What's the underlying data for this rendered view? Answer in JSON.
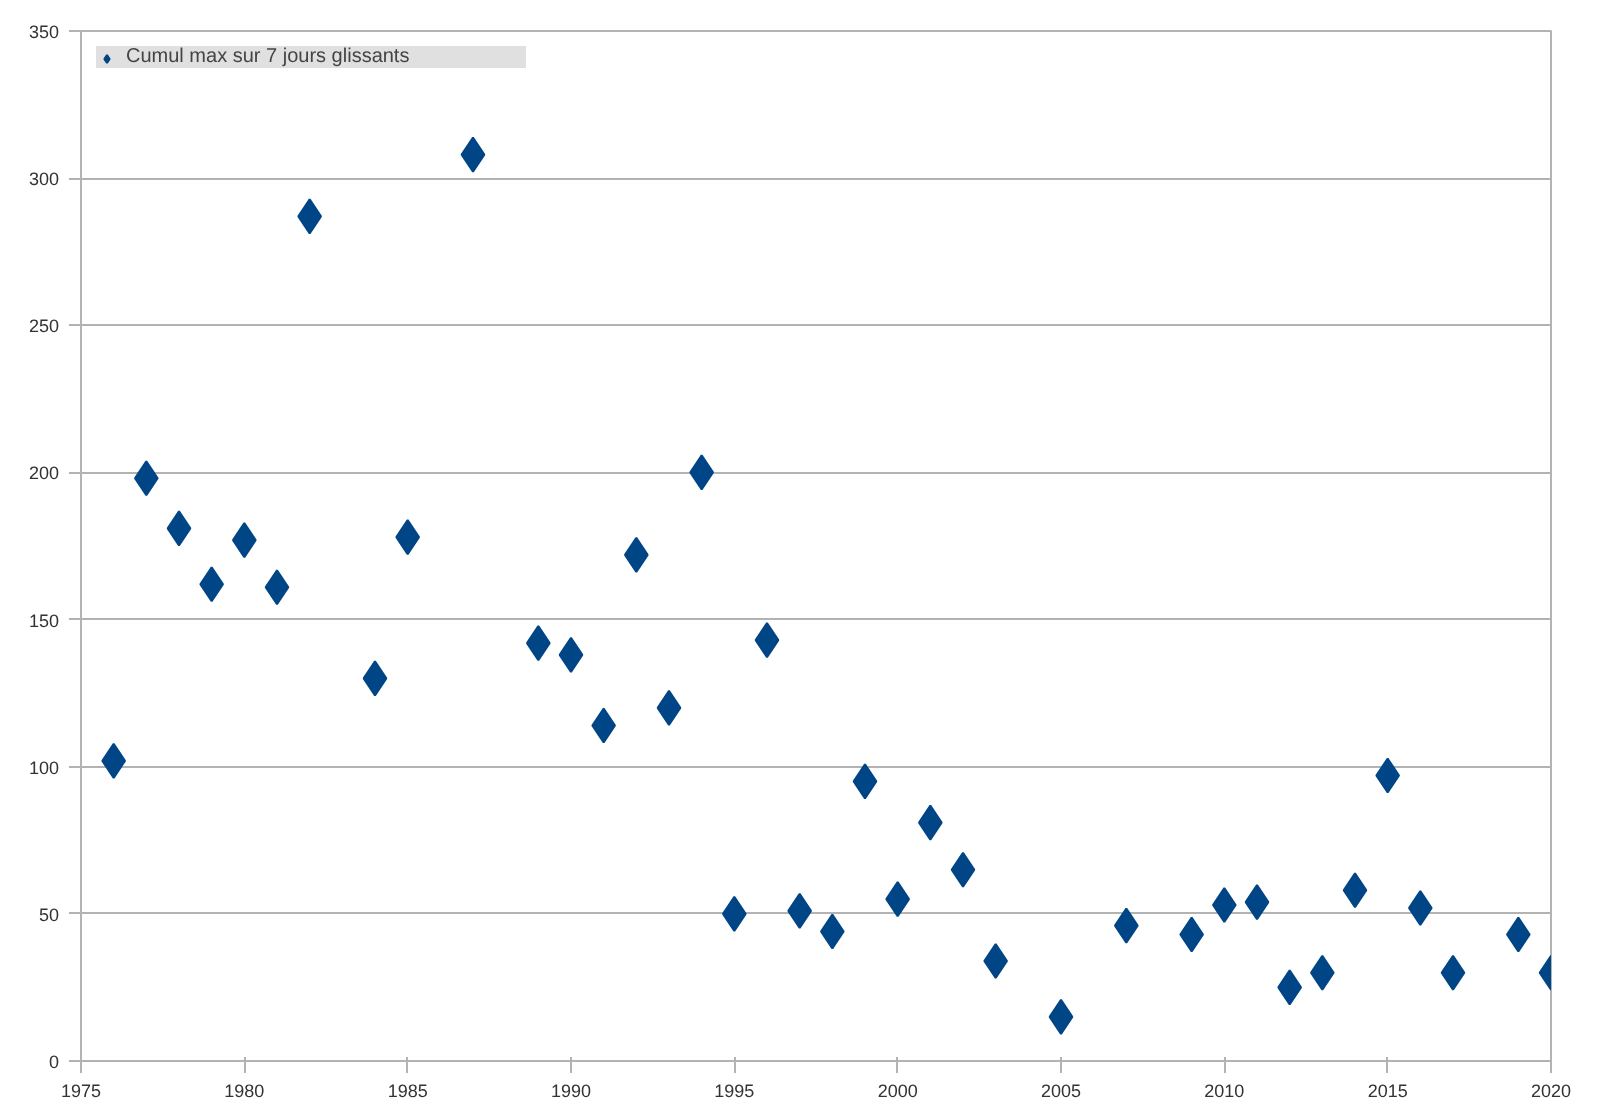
{
  "chart_data": {
    "type": "scatter",
    "marker": "diamond",
    "grid": "y",
    "legend": "top left",
    "x": [
      1976,
      1977,
      1978,
      1979,
      1980,
      1981,
      1982,
      1984,
      1985,
      1987,
      1989,
      1990,
      1991,
      1992,
      1993,
      1994,
      1995,
      1996,
      1997,
      1998,
      1999,
      2000,
      2001,
      2002,
      2003,
      2005,
      2007,
      2009,
      2010,
      2011,
      2012,
      2013,
      2014,
      2015,
      2016,
      2017,
      2019,
      2020
    ],
    "series": [
      {
        "name": "Cumul max sur 7 jours glissants",
        "color": "#004586",
        "values": [
          102,
          198,
          181,
          162,
          177,
          161,
          287,
          130,
          178,
          308,
          142,
          138,
          114,
          172,
          120,
          200,
          50,
          143,
          51,
          44,
          95,
          55,
          81,
          65,
          34,
          15,
          46,
          43,
          53,
          54,
          25,
          30,
          58,
          97,
          52,
          30,
          43,
          30
        ]
      }
    ],
    "xlim": [
      1975,
      2020
    ],
    "xticks": [
      1975,
      1980,
      1985,
      1990,
      1995,
      2000,
      2005,
      2010,
      2015,
      2020
    ],
    "ylim": [
      0,
      350
    ],
    "yticks": [
      0,
      50,
      100,
      150,
      200,
      250,
      300,
      350
    ]
  }
}
